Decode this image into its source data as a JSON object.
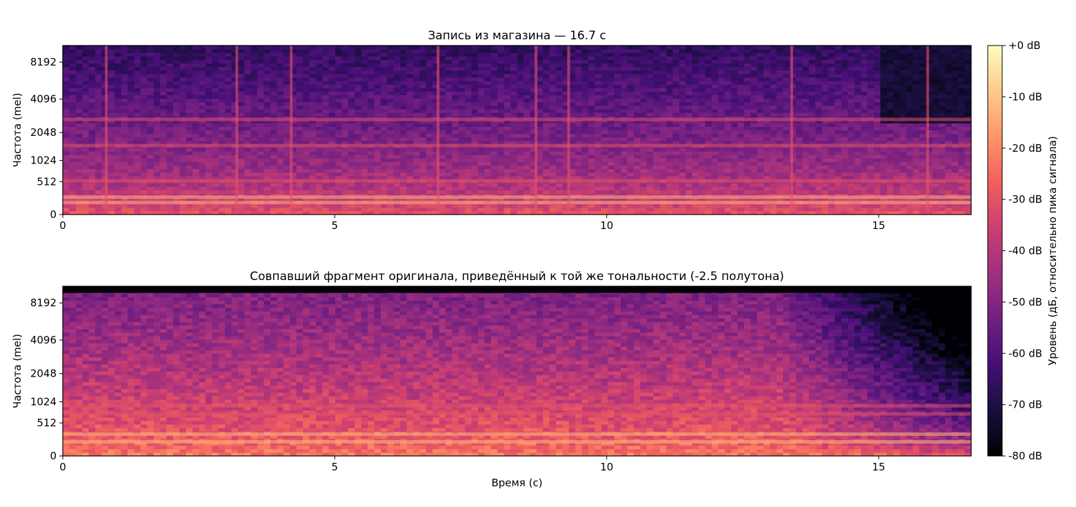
{
  "chart_data": [
    {
      "type": "heatmap",
      "title": "Запись из магазина — 16.7 с",
      "xlabel": "",
      "ylabel": "Частота (mel)",
      "xlim": [
        0,
        16.7
      ],
      "x_ticks": [
        0,
        5,
        10,
        15
      ],
      "x_tick_labels": [
        "0",
        "5",
        "10",
        "15"
      ],
      "y_scale": "mel",
      "y_ticks": [
        0,
        512,
        1024,
        2048,
        4096,
        8192
      ],
      "y_tick_labels": [
        "0",
        "512",
        "1024",
        "2048",
        "4096",
        "8192"
      ],
      "colormap": "magma",
      "value_range_db": [
        -80,
        0
      ],
      "bright_bands_hz": [
        150,
        230,
        520,
        1500,
        2700
      ],
      "vertical_transients_s": [
        0.8,
        3.2,
        4.2,
        6.9,
        8.7,
        9.3,
        13.4,
        15.9
      ],
      "dark_region": {
        "t_from": 15.0,
        "t_to": 16.7,
        "level_db": -72
      }
    },
    {
      "type": "heatmap",
      "title": "Совпавший фрагмент оригинала, приведённый к той же тональности (-2.5 полутона)",
      "xlabel": "Время (с)",
      "ylabel": "Частота (mel)",
      "xlim": [
        0,
        16.7
      ],
      "x_ticks": [
        0,
        5,
        10,
        15
      ],
      "x_tick_labels": [
        "0",
        "5",
        "10",
        "15"
      ],
      "y_scale": "mel",
      "y_ticks": [
        0,
        512,
        1024,
        2048,
        4096,
        8192
      ],
      "y_tick_labels": [
        "0",
        "512",
        "1024",
        "2048",
        "4096",
        "8192"
      ],
      "colormap": "magma",
      "value_range_db": [
        -80,
        0
      ],
      "bright_bands_hz": [
        180,
        300,
        700,
        900
      ],
      "top_cutoff_hz": 9800,
      "fade_out": {
        "t_from": 13.2,
        "t_to": 16.7
      }
    }
  ],
  "colorbar": {
    "label": "Уровень (дБ, относительно пика сигнала)",
    "ticks": [
      0,
      -10,
      -20,
      -30,
      -40,
      -50,
      -60,
      -70,
      -80
    ],
    "tick_labels": [
      "+0 dB",
      "-10 dB",
      "-20 dB",
      "-30 dB",
      "-40 dB",
      "-50 dB",
      "-60 dB",
      "-70 dB",
      "-80 dB"
    ],
    "range": [
      -80,
      0
    ],
    "colors": [
      "#000004",
      "#180f3d",
      "#440f76",
      "#721f81",
      "#9e2f7f",
      "#cd4071",
      "#f1605d",
      "#fd9668",
      "#feca8d",
      "#fcfdbf"
    ]
  }
}
